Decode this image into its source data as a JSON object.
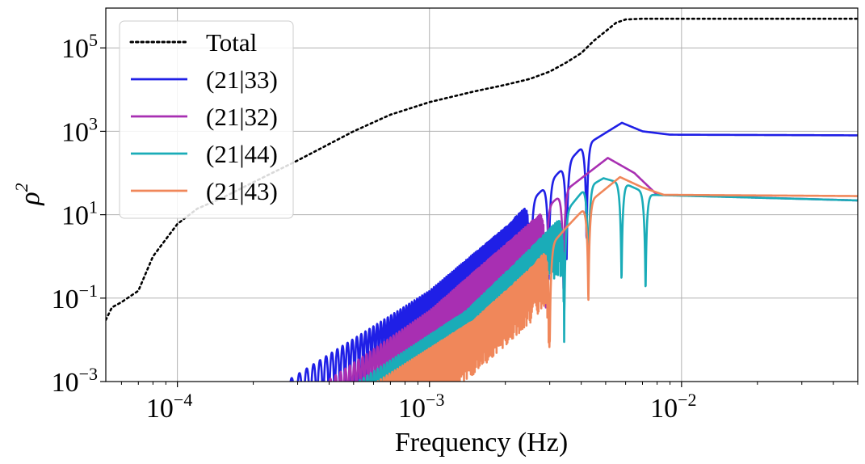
{
  "chart_data": {
    "type": "line",
    "title": "",
    "xlabel": "Frequency (Hz)",
    "ylabel_base": "ρ",
    "ylabel_exp": "2",
    "x_scale": "log",
    "y_scale": "log",
    "xlim": [
      5.2e-05,
      0.05
    ],
    "ylim": [
      0.001,
      900000
    ],
    "grid": true,
    "legend_position": "top-left",
    "x_ticks": [
      {
        "value": 0.0001,
        "base": "10",
        "exp": "−4"
      },
      {
        "value": 0.001,
        "base": "10",
        "exp": "−3"
      },
      {
        "value": 0.01,
        "base": "10",
        "exp": "−2"
      }
    ],
    "y_ticks": [
      {
        "value": 0.001,
        "base": "10",
        "exp": "−3"
      },
      {
        "value": 0.1,
        "base": "10",
        "exp": "−1"
      },
      {
        "value": 10,
        "base": "10",
        "exp": "1"
      },
      {
        "value": 1000,
        "base": "10",
        "exp": "3"
      },
      {
        "value": 100000,
        "base": "10",
        "exp": "5"
      }
    ],
    "series": [
      {
        "name": "Total",
        "color": "#000000",
        "style": "dotted",
        "x": [
          5.2e-05,
          5.5e-05,
          6e-05,
          7e-05,
          8e-05,
          0.0001,
          0.00012,
          0.00015,
          0.0002,
          0.0003,
          0.0005,
          0.0007,
          0.001,
          0.0015,
          0.002,
          0.0025,
          0.003,
          0.0035,
          0.004,
          0.0045,
          0.005,
          0.0055,
          0.006,
          0.007,
          0.01,
          0.02,
          0.05
        ],
        "y": [
          0.03,
          0.06,
          0.08,
          0.15,
          1.0,
          6,
          14,
          25,
          60,
          200,
          1000,
          2500,
          5000,
          9000,
          13000,
          18000,
          27000,
          45000,
          75000,
          150000,
          250000,
          400000,
          480000,
          500000,
          500000,
          500000,
          500000
        ]
      },
      {
        "name": "(21|33)",
        "color": "#1f1fe6",
        "style": "solid",
        "x_start": 0.00027,
        "peak": 1600,
        "peak_x": 0.0058,
        "plateau": 800,
        "env_points": [
          [
            0.00027,
            0.001
          ],
          [
            0.001,
            0.15
          ],
          [
            0.002,
            5
          ],
          [
            0.003,
            60
          ],
          [
            0.004,
            400
          ],
          [
            0.0058,
            1600
          ],
          [
            0.007,
            1000
          ],
          [
            0.009,
            830
          ],
          [
            0.05,
            800
          ]
        ],
        "nulls": [
          0.00252,
          0.00297,
          0.0035,
          0.0042
        ],
        "null_depth": 6
      },
      {
        "name": "(21|32)",
        "color": "#a82fb2",
        "style": "solid",
        "x_start": 0.00039,
        "peak": 230,
        "peak_x": 0.0051,
        "plateau": 22,
        "env_points": [
          [
            0.00039,
            0.001
          ],
          [
            0.001,
            0.05
          ],
          [
            0.0023,
            4
          ],
          [
            0.0035,
            40
          ],
          [
            0.0051,
            230
          ],
          [
            0.0065,
            100
          ],
          [
            0.008,
            30
          ],
          [
            0.05,
            22
          ]
        ],
        "nulls": [
          0.0029,
          0.0034
        ],
        "null_depth": 0.5
      },
      {
        "name": "(21|44)",
        "color": "#1aacb8",
        "style": "solid",
        "x_start": 0.00052,
        "peak": 75,
        "peak_x": 0.0049,
        "plateau": 22,
        "env_points": [
          [
            0.00052,
            0.001
          ],
          [
            0.0014,
            0.05
          ],
          [
            0.0025,
            1.5
          ],
          [
            0.0034,
            10
          ],
          [
            0.0041,
            40
          ],
          [
            0.0049,
            75
          ],
          [
            0.0062,
            50
          ],
          [
            0.0075,
            30
          ],
          [
            0.05,
            22
          ]
        ],
        "nulls": [
          0.00343,
          0.00427,
          0.00578,
          0.0072
        ],
        "null_depth": 1
      },
      {
        "name": "(21|43)",
        "color": "#f0875a",
        "style": "solid",
        "x_start": 0.00062,
        "peak": 80,
        "peak_x": 0.0057,
        "plateau": 28,
        "env_points": [
          [
            0.00062,
            0.001
          ],
          [
            0.0015,
            0.03
          ],
          [
            0.0025,
            0.5
          ],
          [
            0.0035,
            5
          ],
          [
            0.0045,
            25
          ],
          [
            0.0057,
            80
          ],
          [
            0.007,
            45
          ],
          [
            0.0085,
            30
          ],
          [
            0.05,
            28
          ]
        ],
        "nulls": [
          0.003,
          0.00427
        ],
        "null_depth": 0.3
      }
    ]
  }
}
